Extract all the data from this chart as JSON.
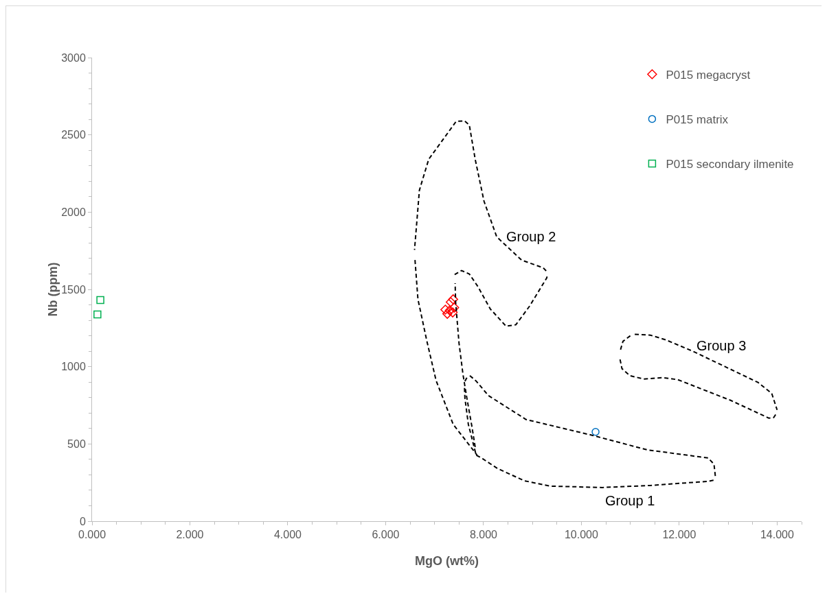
{
  "chart_data": {
    "type": "scatter",
    "xlabel": "MgO (wt%)",
    "ylabel": "Nb (ppm)",
    "xlim": [
      0,
      14.5
    ],
    "xticks": [
      {
        "value": 0,
        "label": "0.000"
      },
      {
        "value": 2,
        "label": "2.000"
      },
      {
        "value": 4,
        "label": "4.000"
      },
      {
        "value": 6,
        "label": "6.000"
      },
      {
        "value": 8,
        "label": "8.000"
      },
      {
        "value": 10,
        "label": "10.000"
      },
      {
        "value": 12,
        "label": "12.000"
      },
      {
        "value": 14,
        "label": "14.000"
      }
    ],
    "ylim": [
      0,
      3000
    ],
    "yticks": [
      0,
      500,
      1000,
      1500,
      2000,
      2500,
      3000
    ],
    "grid": false,
    "legend": "top right",
    "series": [
      {
        "name": "P015 megacryst",
        "color": "#ff0000",
        "marker": "diamond",
        "x": [
          7.38,
          7.33,
          7.22,
          7.4,
          7.26,
          7.37,
          7.31
        ],
        "values": [
          1436,
          1418,
          1369,
          1382,
          1342,
          1351,
          1364
        ]
      },
      {
        "name": "P015 matrix",
        "color": "#0070c0",
        "marker": "circle",
        "x": [
          10.29
        ],
        "values": [
          578
        ]
      },
      {
        "name": "P015 secondary ilmenite",
        "color": "#00b050",
        "marker": "square",
        "x": [
          0.17,
          0.11
        ],
        "values": [
          1431,
          1338
        ]
      },
      {
        "type": "line",
        "color": "#000000",
        "line_style": "dashed",
        "marker": "none",
        "x": [
          7.41,
          7.55,
          7.71,
          7.89,
          8.14,
          8.46,
          8.66,
          8.94,
          9.29,
          9.31
        ],
        "values": [
          1596,
          1622,
          1600,
          1516,
          1373,
          1262,
          1271,
          1391,
          1573,
          1596
        ]
      },
      {
        "type": "line",
        "color": "#000000",
        "line_style": "dashed",
        "marker": "none",
        "x": [
          9.28,
          9.22,
          8.78,
          8.27,
          8.01,
          7.83,
          7.71,
          7.61,
          7.44,
          6.88,
          6.69,
          6.59
        ],
        "values": [
          1620,
          1640,
          1689,
          1840,
          2071,
          2342,
          2564,
          2591,
          2587,
          2342,
          2142,
          1756
        ]
      },
      {
        "type": "line",
        "color": "#000000",
        "line_style": "dashed",
        "marker": "none",
        "x": [
          6.6,
          6.66,
          6.84,
          7.03,
          7.38,
          7.87
        ],
        "values": [
          1690,
          1436,
          1169,
          911,
          627,
          427
        ]
      },
      {
        "type": "line",
        "color": "#000000",
        "line_style": "dashed",
        "marker": "none",
        "x": [
          7.83,
          7.76,
          7.66,
          7.58,
          7.5,
          7.43,
          7.42
        ],
        "values": [
          480,
          618,
          796,
          951,
          1151,
          1418,
          1540
        ]
      },
      {
        "type": "line",
        "color": "#000000",
        "line_style": "dashed",
        "marker": "none",
        "x": [
          7.72,
          7.85,
          8.1,
          8.87,
          10.22,
          11.34,
          12.59,
          12.71,
          12.74
        ],
        "values": [
          942,
          907,
          813,
          658,
          556,
          462,
          409,
          369,
          284
        ]
      },
      {
        "type": "line",
        "color": "#000000",
        "line_style": "dashed",
        "marker": "none",
        "x": [
          12.7,
          12.59,
          11.4,
          10.43,
          9.36,
          8.83,
          8.28,
          7.96,
          7.85,
          7.69,
          7.62,
          7.61
        ],
        "values": [
          265,
          258,
          231,
          218,
          227,
          262,
          342,
          409,
          427,
          627,
          796,
          870
        ]
      },
      {
        "type": "line",
        "color": "#000000",
        "line_style": "dashed",
        "marker": "none",
        "x": [
          7.62,
          7.67
        ],
        "values": [
          905,
          935
        ]
      },
      {
        "type": "line",
        "color": "#000000",
        "line_style": "dashed",
        "marker": "none",
        "x": [
          11.09,
          11.41,
          11.73,
          12.29,
          13.61,
          13.89,
          14.0
        ],
        "values": [
          1209,
          1204,
          1173,
          1098,
          898,
          827,
          720
        ]
      },
      {
        "type": "line",
        "color": "#000000",
        "line_style": "dashed",
        "marker": "none",
        "x": [
          13.97,
          13.93,
          13.83,
          13.05,
          11.97,
          11.65,
          11.27,
          10.99,
          10.83,
          10.78
        ],
        "values": [
          690,
          671,
          667,
          782,
          916,
          929,
          920,
          942,
          987,
          1062
        ]
      },
      {
        "type": "line",
        "color": "#000000",
        "line_style": "dashed",
        "marker": "none",
        "x": [
          10.8,
          10.85,
          11.0
        ],
        "values": [
          1110,
          1164,
          1200
        ]
      }
    ],
    "annotations": [
      {
        "text": "Group 1",
        "x": 10.43,
        "y": 218
      },
      {
        "text": "Group 2",
        "x": 8.27,
        "y": 1840
      },
      {
        "text": "Group 3",
        "x": 12.29,
        "y": 1098
      }
    ]
  }
}
